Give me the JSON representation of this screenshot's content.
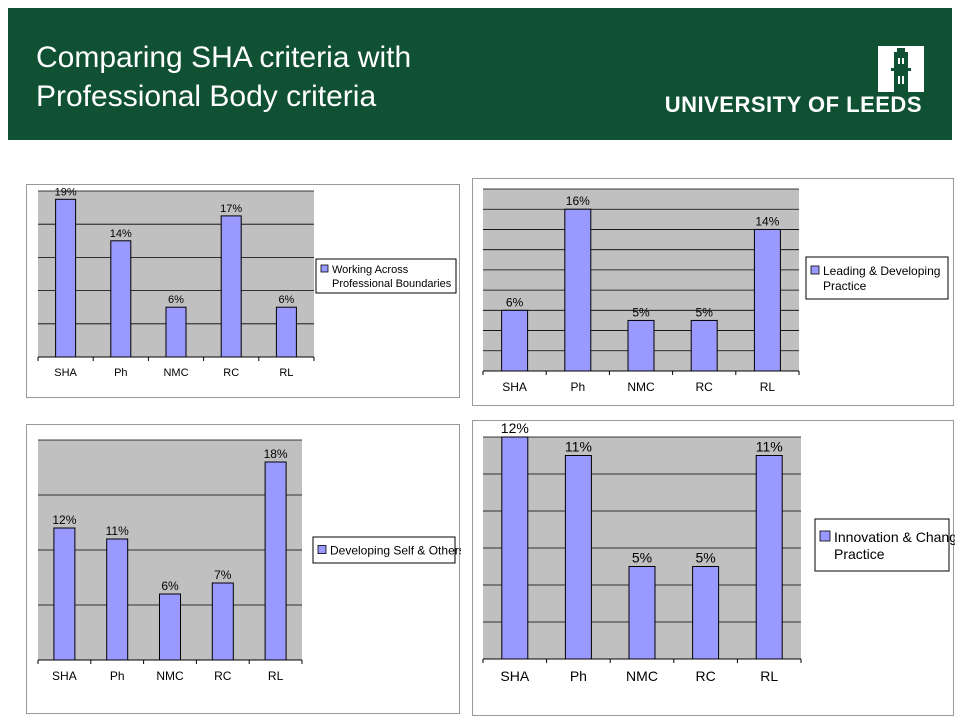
{
  "header": {
    "title_line1": "Comparing SHA criteria with",
    "title_line2": "Professional Body criteria",
    "logo_text": "UNIVERSITY OF LEEDS",
    "bg_color": "#0f5132"
  },
  "colors": {
    "bar": "#9999ff",
    "plot_bg": "#c0c0c0"
  },
  "chart_data": [
    {
      "type": "bar",
      "categories": [
        "SHA",
        "Ph",
        "NMC",
        "RC",
        "RL"
      ],
      "series": [
        {
          "name": "Working Across Professional Boundaries",
          "values": [
            19,
            14,
            6,
            17,
            6
          ]
        }
      ],
      "data_labels": [
        "19%",
        "14%",
        "6%",
        "17%",
        "6%"
      ],
      "legend": [
        "Working Across",
        "Professional Boundaries"
      ],
      "legend_position": "right",
      "ylim": [
        0,
        20
      ],
      "gridlines": 5,
      "grid": true
    },
    {
      "type": "bar",
      "categories": [
        "SHA",
        "Ph",
        "NMC",
        "RC",
        "RL"
      ],
      "series": [
        {
          "name": "Leading & Developing Practice",
          "values": [
            6,
            16,
            5,
            5,
            14
          ]
        }
      ],
      "data_labels": [
        "6%",
        "16%",
        "5%",
        "5%",
        "14%"
      ],
      "legend": [
        "Leading & Developing",
        "Practice"
      ],
      "legend_position": "right",
      "ylim": [
        0,
        18
      ],
      "gridlines": 9,
      "grid": true
    },
    {
      "type": "bar",
      "categories": [
        "SHA",
        "Ph",
        "NMC",
        "RC",
        "RL"
      ],
      "series": [
        {
          "name": "Developing Self & Others",
          "values": [
            12,
            11,
            6,
            7,
            18
          ]
        }
      ],
      "data_labels": [
        "12%",
        "11%",
        "6%",
        "7%",
        "18%"
      ],
      "legend": [
        "Developing Self & Others"
      ],
      "legend_position": "right",
      "ylim": [
        0,
        20
      ],
      "gridlines": 4,
      "grid": true
    },
    {
      "type": "bar",
      "categories": [
        "SHA",
        "Ph",
        "NMC",
        "RC",
        "RL"
      ],
      "series": [
        {
          "name": "Innovation & Change Practice",
          "values": [
            12,
            11,
            5,
            5,
            11
          ]
        }
      ],
      "data_labels": [
        "12%",
        "11%",
        "5%",
        "5%",
        "11%"
      ],
      "legend": [
        "Innovation & Change",
        "Practice"
      ],
      "legend_position": "right",
      "ylim": [
        0,
        12
      ],
      "gridlines": 6,
      "grid": true
    }
  ]
}
